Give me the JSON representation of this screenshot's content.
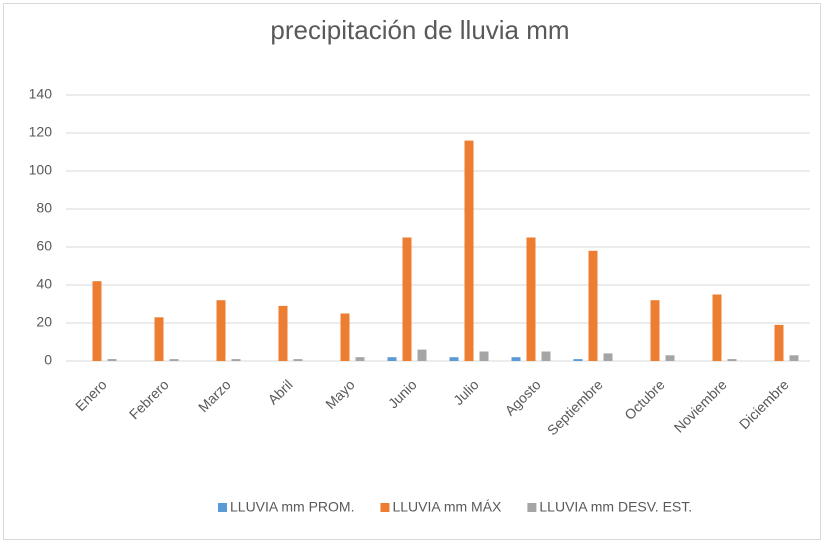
{
  "chart_data": {
    "type": "bar",
    "title": "precipitación de lluvia mm",
    "categories": [
      "Enero",
      "Febrero",
      "Marzo",
      "Abril",
      "Mayo",
      "Junio",
      "Julio",
      "Agosto",
      "Septiembre",
      "Octubre",
      "Noviembre",
      "Diciembre"
    ],
    "series": [
      {
        "name": "LLUVIA mm PROM.",
        "color": "#5b9bd5",
        "values": [
          0,
          0,
          0,
          0,
          0,
          2,
          2,
          2,
          1,
          0,
          0,
          0
        ]
      },
      {
        "name": "LLUVIA mm MÁX",
        "color": "#ed7d31",
        "values": [
          42,
          23,
          32,
          29,
          25,
          65,
          116,
          65,
          58,
          32,
          35,
          19
        ]
      },
      {
        "name": "LLUVIA mm DESV. EST.",
        "color": "#a5a5a5",
        "values": [
          1,
          1,
          1,
          1,
          2,
          6,
          5,
          5,
          4,
          3,
          1,
          3
        ]
      }
    ],
    "ylim": [
      0,
      140
    ],
    "yticks": [
      0,
      20,
      40,
      60,
      80,
      100,
      120,
      140
    ],
    "grid": true,
    "legend": "bottom"
  }
}
